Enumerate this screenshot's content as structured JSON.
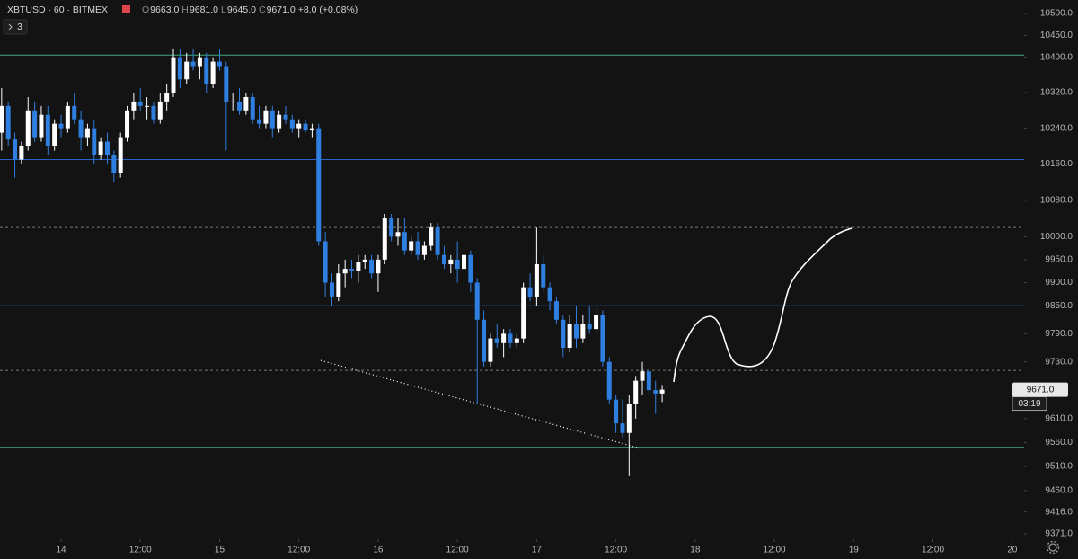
{
  "header": {
    "title": "XBTUSD · 60 · BITMEX",
    "indicators": "3",
    "ohlc": [
      {
        "name": "O",
        "label": "9663.0"
      },
      {
        "name": "H",
        "label": "9681.0"
      },
      {
        "name": "L",
        "label": "9645.0"
      },
      {
        "name": "C",
        "label": "9671.0"
      }
    ],
    "change": "+8.0 (+0.08%)"
  },
  "chart_data": {
    "type": "candlestick",
    "log_scale": true,
    "up_color": "#ffffff",
    "down_color": "#2f7fe0",
    "x": [
      -9,
      -8,
      -7,
      -6,
      -5,
      -4,
      -3,
      -2,
      -1,
      0,
      1,
      2,
      3,
      4,
      5,
      6,
      7,
      8,
      9,
      10,
      11,
      12,
      13,
      14,
      15,
      16,
      17,
      18,
      19,
      20,
      21,
      22,
      23,
      24,
      25,
      26,
      27,
      28,
      29,
      30,
      31,
      32,
      33,
      34,
      35,
      36,
      37,
      38,
      39,
      40,
      41,
      42,
      43,
      44,
      45,
      46,
      47,
      48,
      49,
      50,
      51,
      52,
      53,
      54,
      55,
      56,
      57,
      58,
      59,
      60,
      61,
      62,
      63,
      64,
      65,
      66,
      67,
      68,
      69,
      70,
      71,
      72,
      73,
      74,
      75,
      76,
      77,
      78,
      79,
      80,
      81,
      82,
      83,
      84,
      85,
      86,
      87,
      88,
      89,
      90,
      91
    ],
    "open": [
      10230,
      10290,
      10215,
      10170,
      10200,
      10280,
      10220,
      10270,
      10200,
      10250,
      10240,
      10290,
      10260,
      10220,
      10240,
      10180,
      10210,
      10180,
      10140,
      10220,
      10280,
      10300,
      10290,
      10290,
      10260,
      10300,
      10320,
      10400,
      10350,
      10390,
      10380,
      10400,
      10340,
      10390,
      10380,
      10300,
      10300,
      10280,
      10310,
      10260,
      10250,
      10280,
      10240,
      10270,
      10260,
      10240,
      10250,
      10235,
      10240,
      9990,
      9900,
      9870,
      9920,
      9930,
      9925,
      9945,
      9950,
      9920,
      9950,
      10040,
      10000,
      10010,
      9970,
      9990,
      9960,
      9980,
      10020,
      9960,
      9940,
      9950,
      9930,
      9960,
      9900,
      9820,
      9730,
      9780,
      9770,
      9790,
      9770,
      9780,
      9890,
      9870,
      9940,
      9890,
      9860,
      9820,
      9760,
      9810,
      9780,
      9810,
      9800,
      9830,
      9730,
      9650,
      9600,
      9580,
      9640,
      9690,
      9710,
      9670,
      9663
    ],
    "high": [
      10330,
      10300,
      10230,
      10210,
      10310,
      10300,
      10290,
      10290,
      10260,
      10270,
      10300,
      10320,
      10280,
      10250,
      10260,
      10220,
      10230,
      10190,
      10230,
      10290,
      10320,
      10330,
      10310,
      10300,
      10320,
      10340,
      10420,
      10420,
      10410,
      10420,
      10410,
      10410,
      10400,
      10420,
      10390,
      10320,
      10330,
      10320,
      10320,
      10290,
      10290,
      10290,
      10280,
      10290,
      10270,
      10260,
      10260,
      10250,
      10250,
      10010,
      9920,
      9940,
      9950,
      9950,
      9960,
      9960,
      9960,
      9960,
      10050,
      10050,
      10040,
      10040,
      10000,
      10010,
      9990,
      10030,
      10030,
      9980,
      9960,
      9990,
      9970,
      9970,
      9910,
      9840,
      9790,
      9810,
      9800,
      9800,
      9790,
      9900,
      9920,
      10020,
      9960,
      9900,
      9870,
      9830,
      9830,
      9850,
      9830,
      9850,
      9850,
      9840,
      9740,
      9660,
      9650,
      9660,
      9700,
      9730,
      9720,
      9690,
      9681
    ],
    "low": [
      10190,
      10200,
      10130,
      10160,
      10190,
      10210,
      10210,
      10180,
      10190,
      10220,
      10230,
      10250,
      10190,
      10200,
      10160,
      10170,
      10160,
      10120,
      10130,
      10210,
      10260,
      10280,
      10260,
      10250,
      10250,
      10280,
      10310,
      10330,
      10340,
      10370,
      10350,
      10320,
      10330,
      10370,
      10190,
      10280,
      10270,
      10270,
      10250,
      10240,
      10240,
      10220,
      10230,
      10250,
      10230,
      10220,
      10230,
      10220,
      9980,
      9870,
      9850,
      9860,
      9890,
      9910,
      9900,
      9930,
      9910,
      9880,
      9940,
      9990,
      9980,
      9960,
      9960,
      9950,
      9950,
      9970,
      9950,
      9930,
      9920,
      9900,
      9900,
      9880,
      9640,
      9720,
      9720,
      9760,
      9740,
      9760,
      9760,
      9770,
      9860,
      9850,
      9880,
      9840,
      9810,
      9740,
      9750,
      9760,
      9770,
      9790,
      9790,
      9720,
      9640,
      9580,
      9570,
      9490,
      9610,
      9660,
      9660,
      9620,
      9645
    ],
    "close": [
      10290,
      10215,
      10170,
      10200,
      10280,
      10220,
      10270,
      10200,
      10250,
      10240,
      10290,
      10260,
      10220,
      10240,
      10180,
      10210,
      10180,
      10140,
      10220,
      10280,
      10300,
      10290,
      10290,
      10260,
      10300,
      10320,
      10400,
      10350,
      10390,
      10380,
      10400,
      10340,
      10390,
      10380,
      10300,
      10300,
      10280,
      10310,
      10260,
      10250,
      10280,
      10240,
      10270,
      10260,
      10240,
      10250,
      10235,
      10240,
      9990,
      9900,
      9870,
      9920,
      9930,
      9925,
      9945,
      9950,
      9920,
      9950,
      10040,
      10000,
      10010,
      9970,
      9990,
      9960,
      9980,
      10020,
      9960,
      9940,
      9950,
      9930,
      9960,
      9900,
      9820,
      9730,
      9780,
      9770,
      9790,
      9770,
      9780,
      9890,
      9870,
      9940,
      9890,
      9860,
      9820,
      9760,
      9810,
      9780,
      9810,
      9800,
      9830,
      9730,
      9650,
      9600,
      9580,
      9640,
      9690,
      9710,
      9670,
      9663,
      9671
    ],
    "xlim": [
      -9.25,
      145.8
    ],
    "xticks": [
      {
        "value": 0,
        "label": "14"
      },
      {
        "value": 12,
        "label": "12:00"
      },
      {
        "value": 24,
        "label": "15"
      },
      {
        "value": 36,
        "label": "12:00"
      },
      {
        "value": 48,
        "label": "16"
      },
      {
        "value": 60,
        "label": "12:00"
      },
      {
        "value": 72,
        "label": "17"
      },
      {
        "value": 84,
        "label": "12:00"
      },
      {
        "value": 96,
        "label": "18"
      },
      {
        "value": 108,
        "label": "12:00"
      },
      {
        "value": 120,
        "label": "19"
      },
      {
        "value": 132,
        "label": "12:00"
      },
      {
        "value": 144,
        "label": "20"
      }
    ],
    "ylim": [
      9360,
      10531
    ],
    "yticks": [
      {
        "value": 10500,
        "label": "10500.0"
      },
      {
        "value": 10450,
        "label": "10450.0"
      },
      {
        "value": 10400,
        "label": "10400.0"
      },
      {
        "value": 10320,
        "label": "10320.0"
      },
      {
        "value": 10240,
        "label": "10240.0"
      },
      {
        "value": 10160,
        "label": "10160.0"
      },
      {
        "value": 10080,
        "label": "10080.0"
      },
      {
        "value": 10000,
        "label": "10000.0"
      },
      {
        "value": 9950,
        "label": "9950.0"
      },
      {
        "value": 9900,
        "label": "9900.0"
      },
      {
        "value": 9850,
        "label": "9850.0"
      },
      {
        "value": 9790,
        "label": "9790.0"
      },
      {
        "value": 9730,
        "label": "9730.0"
      },
      {
        "value": 9610,
        "label": "9610.0"
      },
      {
        "value": 9560,
        "label": "9560.0"
      },
      {
        "value": 9510,
        "label": "9510.0"
      },
      {
        "value": 9460,
        "label": "9460.0"
      },
      {
        "value": 9416,
        "label": "9416.0"
      },
      {
        "value": 9371,
        "label": "9371.0"
      }
    ],
    "horizontal_lines": [
      {
        "value": 10405,
        "color": "#3fa77a",
        "style": "solid"
      },
      {
        "value": 10170,
        "color": "#2563c9",
        "style": "solid"
      },
      {
        "value": 10020,
        "color": "#7a7a7a",
        "style": "dashed"
      },
      {
        "value": 9850,
        "color": "#2563c9",
        "style": "solid"
      },
      {
        "value": 9712,
        "color": "#7a7a7a",
        "style": "dashed"
      },
      {
        "value": 9550,
        "color": "#3fa77a",
        "style": "solid"
      }
    ],
    "trendline": {
      "x": [
        39.3,
        87.6
      ],
      "y": [
        9733,
        9548
      ],
      "color": "#ffffff"
    },
    "last_price": {
      "value": 9671,
      "label": "9671.0",
      "countdown": "03:19"
    }
  }
}
